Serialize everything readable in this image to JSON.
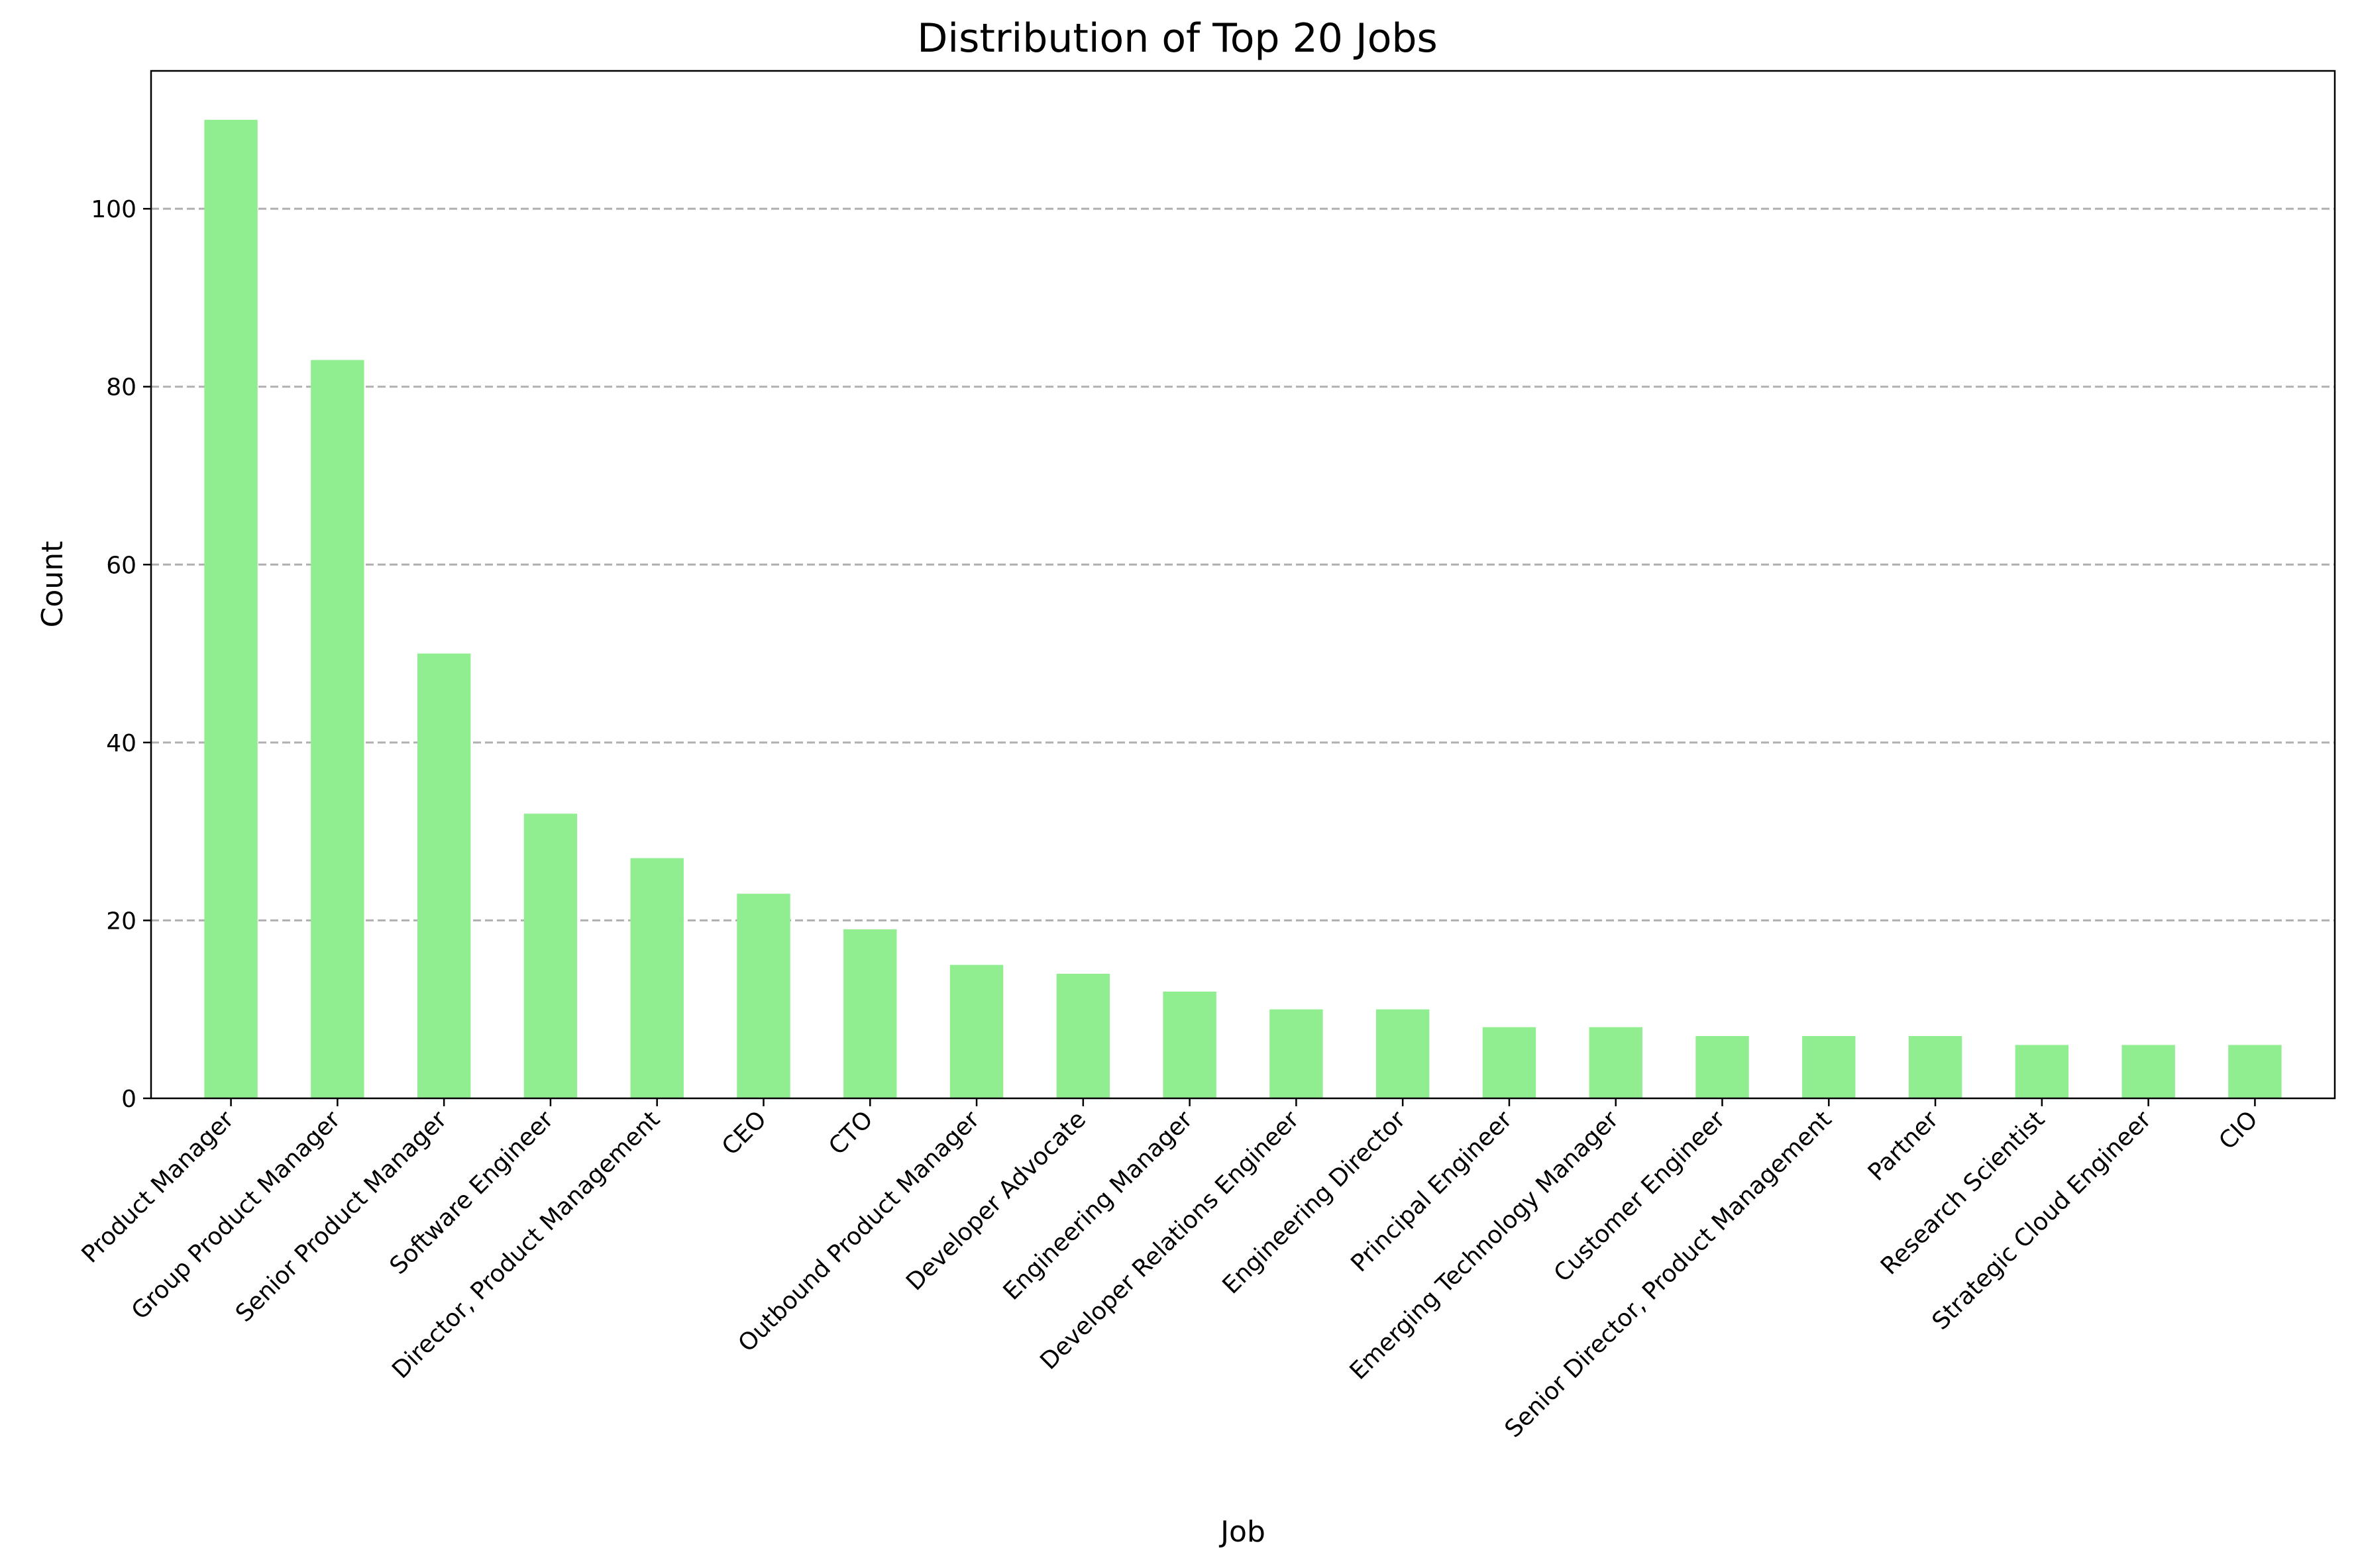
{
  "chart_data": {
    "type": "bar",
    "title": "Distribution of Top 20 Jobs",
    "xlabel": "Job",
    "ylabel": "Count",
    "ylim": [
      0,
      115.5
    ],
    "yticks": [
      0,
      20,
      40,
      60,
      80,
      100
    ],
    "grid": "y-dashed",
    "bar_color": "#90ee90",
    "categories": [
      "Product Manager",
      "Group Product Manager",
      "Senior Product Manager",
      "Software Engineer",
      "Director, Product Management",
      "CEO",
      "CTO",
      "Outbound Product Manager",
      "Developer Advocate",
      "Engineering Manager",
      "Developer Relations Engineer",
      "Engineering Director",
      "Principal Engineer",
      "Emerging Technology Manager",
      "Customer Engineer",
      "Senior Director, Product Management",
      "Partner",
      "Research Scientist",
      "Strategic Cloud Engineer",
      "CIO"
    ],
    "values": [
      110,
      83,
      50,
      32,
      27,
      23,
      19,
      15,
      14,
      12,
      10,
      10,
      8,
      8,
      7,
      7,
      7,
      6,
      6,
      6
    ]
  }
}
